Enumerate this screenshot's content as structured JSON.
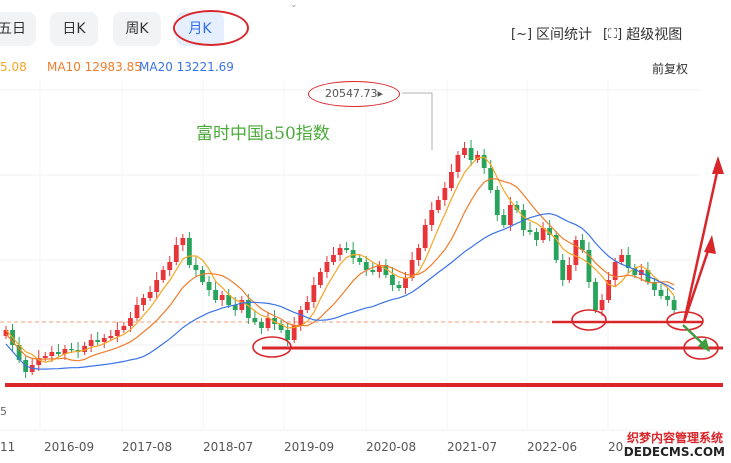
{
  "tabs": [
    {
      "label": "五日",
      "visible_label": "五日",
      "active": false
    },
    {
      "label": "日K",
      "active": false
    },
    {
      "label": "周K",
      "active": false
    },
    {
      "label": "月K",
      "active": true
    }
  ],
  "tools": {
    "range_stat_label": "区间统计",
    "super_view_label": "超级视图"
  },
  "ma": {
    "ma5_partial": "5.08",
    "ma10": "MA10 12983.85",
    "ma20": "MA20 13221.69",
    "ma5_color": "#f5a623",
    "ma10_color": "#f07d2c",
    "ma20_color": "#3b73e8"
  },
  "adjust_label": "前复权",
  "peak_label": "20547.73",
  "annotation_title": "富时中国a50指数",
  "x_axis_labels": [
    "11",
    "2016-09",
    "2017-08",
    "2018-07",
    "2019-09",
    "2020-08",
    "2021-07",
    "2022-06",
    "20"
  ],
  "y_edge_label": "5",
  "watermark": {
    "line1": "织梦内容管理系统",
    "line2": "DEDECMS.COM"
  },
  "colors": {
    "up": "#e8353a",
    "down": "#27a35b",
    "mark": "#d8262b",
    "arrow_green": "#3e9b3e"
  },
  "chart_data": {
    "type": "candlestick",
    "period": "monthly",
    "peak_high": 20547.73,
    "ma10_last": 12983.85,
    "ma20_last": 13221.69
  }
}
